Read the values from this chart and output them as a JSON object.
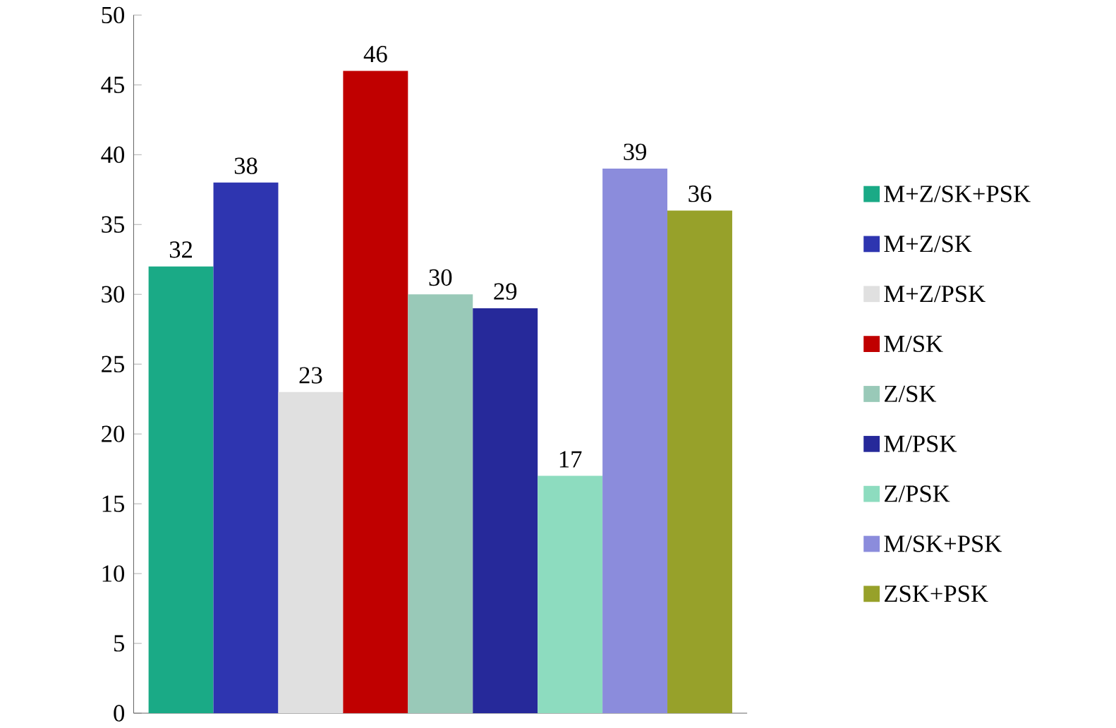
{
  "chart_data": {
    "type": "bar",
    "categories": [
      null
    ],
    "series": [
      {
        "name": "M+Z/SK+PSK",
        "color": "#1aaa86",
        "values": [
          32
        ]
      },
      {
        "name": "M+Z/SK",
        "color": "#2e35b0",
        "values": [
          38
        ]
      },
      {
        "name": "M+Z/PSK",
        "color": "#e0e0e0",
        "values": [
          23
        ]
      },
      {
        "name": "M/SK",
        "color": "#c00000",
        "values": [
          46
        ]
      },
      {
        "name": "Z/SK",
        "color": "#99c9b8",
        "values": [
          30
        ]
      },
      {
        "name": "M/PSK",
        "color": "#26299a",
        "values": [
          29
        ]
      },
      {
        "name": "Z/PSK",
        "color": "#8ddcbf",
        "values": [
          17
        ]
      },
      {
        "name": "M/SK+PSK",
        "color": "#8b8cdc",
        "values": [
          39
        ]
      },
      {
        "name": "ZSK+PSK",
        "color": "#97a12a",
        "values": [
          36
        ]
      }
    ],
    "ylim": [
      0,
      50
    ],
    "yticks": [
      0,
      5,
      10,
      15,
      20,
      25,
      30,
      35,
      40,
      45,
      50
    ],
    "data_labels": true,
    "legend": "right",
    "grid": false
  }
}
